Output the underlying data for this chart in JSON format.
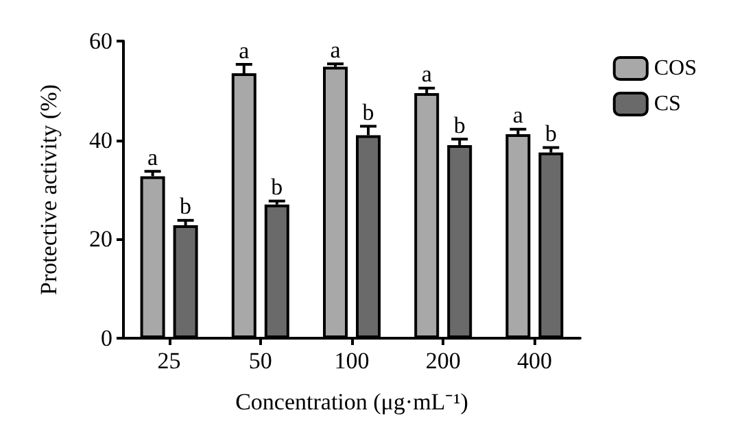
{
  "chart_data": {
    "type": "bar",
    "xlabel": "Concentration (μg·mL⁻¹)",
    "ylabel": "Protective activity (%)",
    "categories": [
      "25",
      "50",
      "100",
      "200",
      "400"
    ],
    "series": [
      {
        "name": "COS",
        "color": "#a8a8a8",
        "values": [
          32.7,
          53.5,
          54.8,
          49.5,
          41.2
        ],
        "errors": [
          1,
          1.8,
          0.6,
          1,
          1
        ],
        "value_labels": [
          "a",
          "a",
          "a",
          "a",
          "a"
        ]
      },
      {
        "name": "CS",
        "color": "#6a6a6a",
        "values": [
          22.8,
          27,
          41,
          39,
          37.5
        ],
        "errors": [
          1,
          0.7,
          1.8,
          1.2,
          1
        ],
        "value_labels": [
          "b",
          "b",
          "b",
          "b",
          "b"
        ]
      }
    ],
    "ylim": [
      0,
      60
    ],
    "yticks": [
      0,
      20,
      40,
      60
    ],
    "grid": false,
    "legend": "top right"
  }
}
